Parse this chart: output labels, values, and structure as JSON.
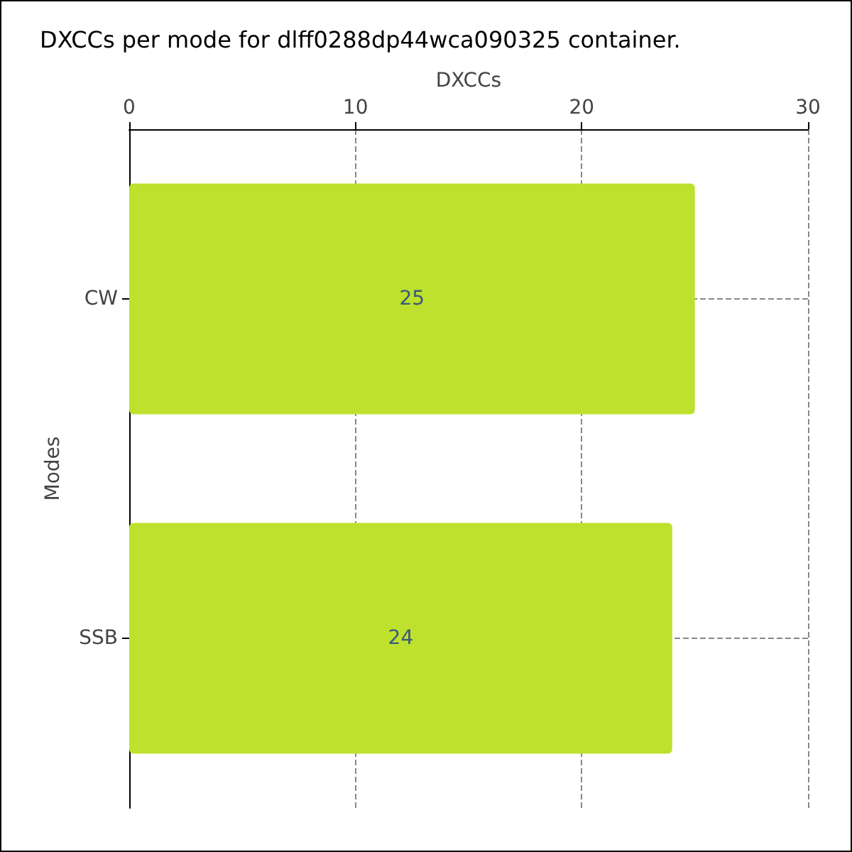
{
  "chart_data": {
    "type": "bar",
    "orientation": "horizontal",
    "title": "DXCCs per mode for dlff0288dp44wca090325 container.",
    "xlabel": "DXCCs",
    "ylabel": "Modes",
    "categories": [
      "CW",
      "SSB"
    ],
    "values": [
      25,
      24
    ],
    "color": "#bde12d",
    "xlim": [
      0,
      30
    ],
    "xticks": [
      0,
      10,
      20,
      30
    ],
    "grid": true,
    "data_labels": true
  }
}
